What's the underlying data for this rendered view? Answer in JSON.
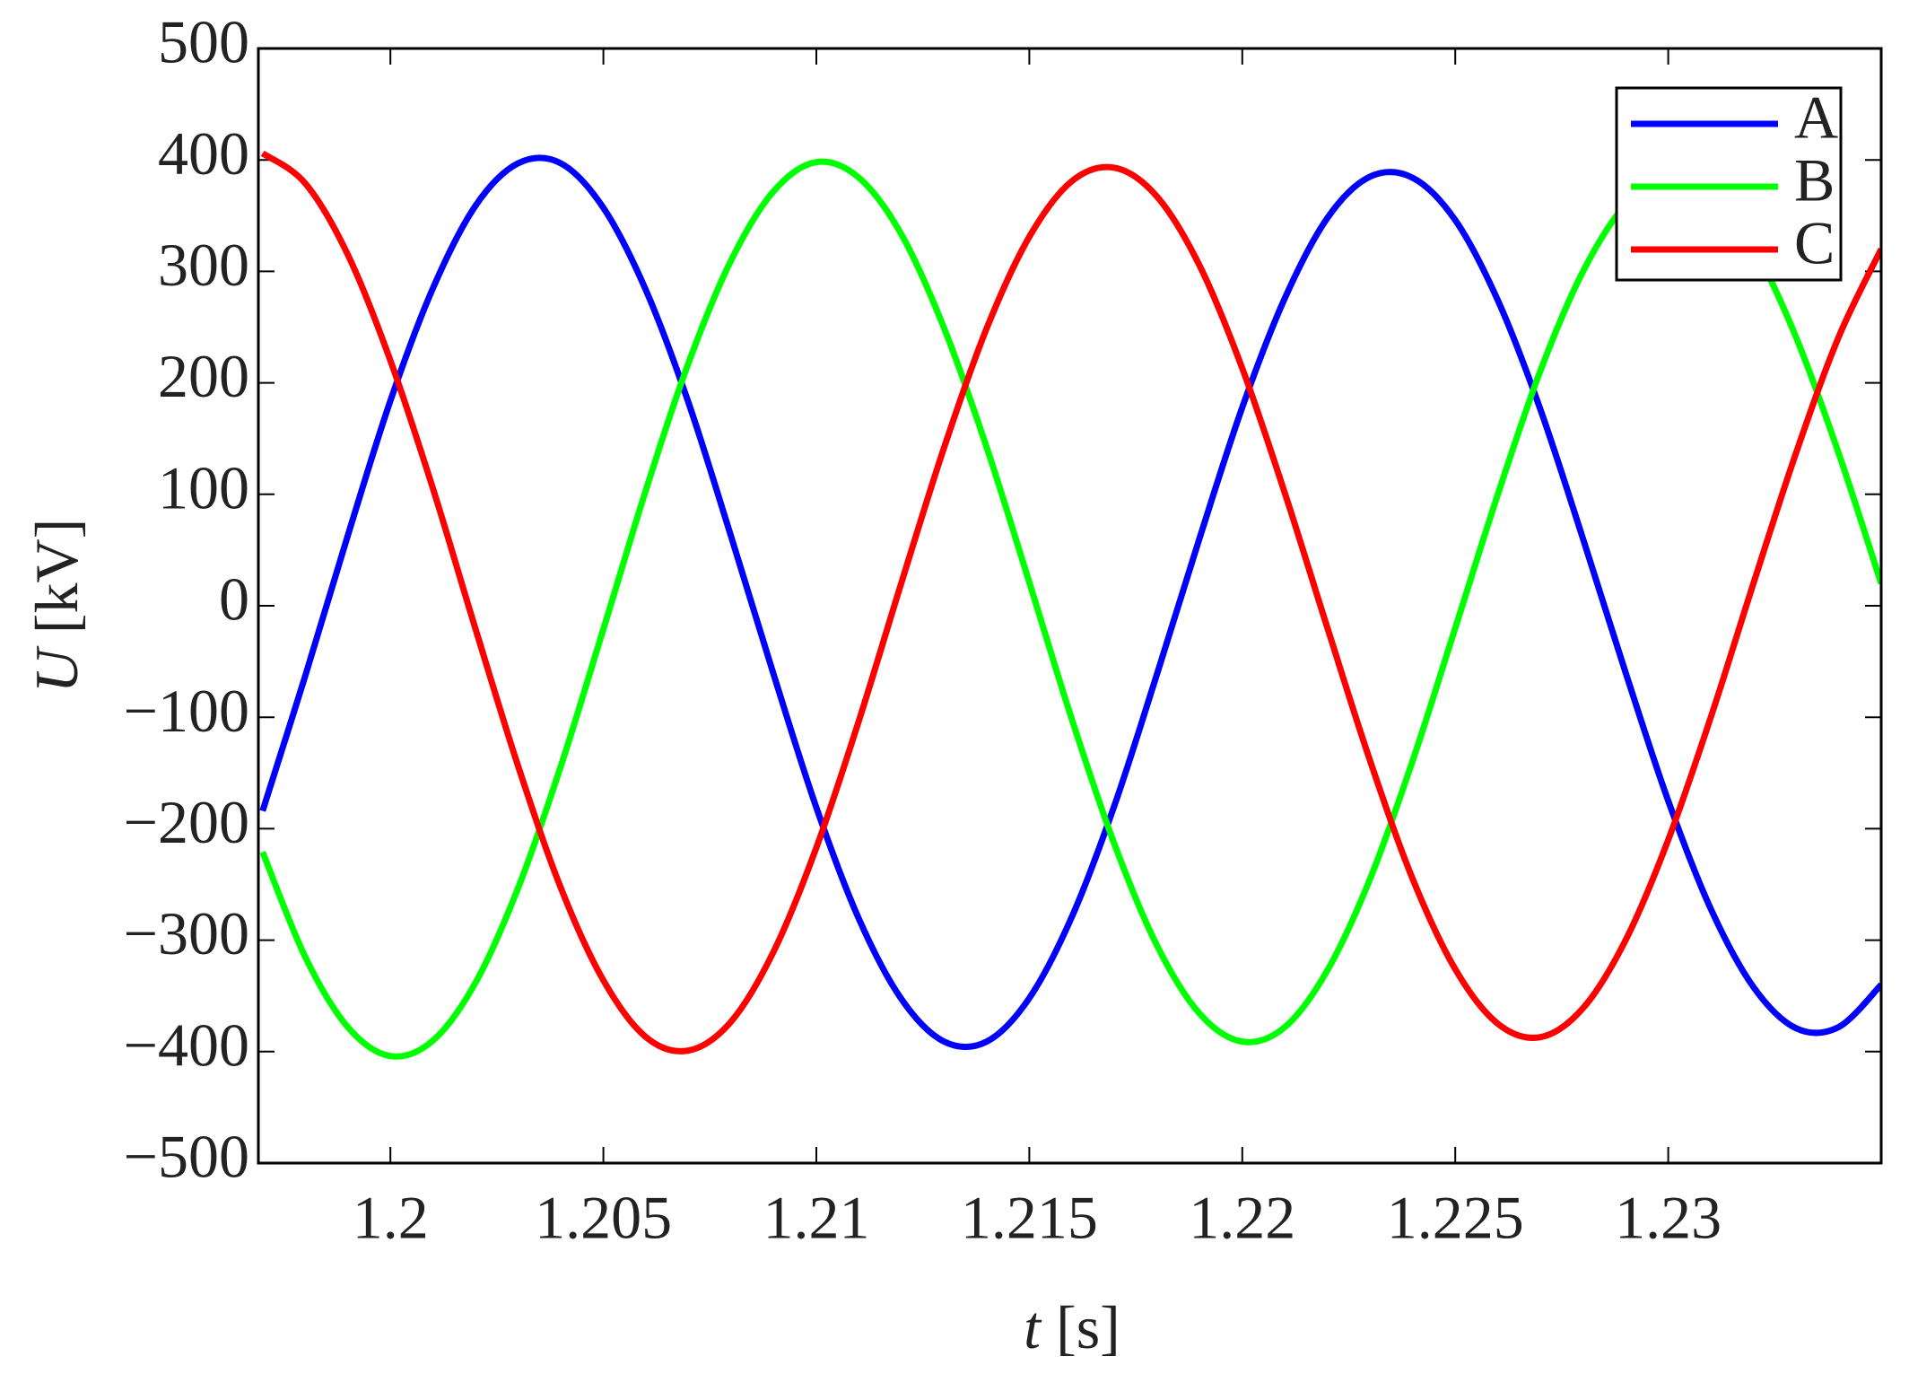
{
  "chart_data": {
    "type": "line",
    "x_label": {
      "symbol": "t",
      "unit": "[s]"
    },
    "y_label": {
      "symbol": "U",
      "unit": "[kV]"
    },
    "x": [
      1.197,
      1.198,
      1.199,
      1.2,
      1.201,
      1.202,
      1.203,
      1.204,
      1.205,
      1.206,
      1.207,
      1.208,
      1.209,
      1.21,
      1.211,
      1.212,
      1.213,
      1.214,
      1.215,
      1.216,
      1.217,
      1.218,
      1.219,
      1.22,
      1.221,
      1.222,
      1.223,
      1.224,
      1.225,
      1.226,
      1.227,
      1.228,
      1.229,
      1.23,
      1.231,
      1.232,
      1.233,
      1.234,
      1.235
    ],
    "series": [
      {
        "name": "A",
        "color": "#0000ff",
        "values": [
          -184,
          -63,
          63,
          184,
          285,
          359,
          397,
          397,
          357,
          283,
          182,
          62,
          -62,
          -181,
          -281,
          -353,
          -391,
          -391,
          -352,
          -279,
          -179,
          -61,
          61,
          178,
          276,
          348,
          385,
          384,
          346,
          274,
          176,
          60,
          -60,
          -175,
          -272,
          -342,
          -379,
          -378,
          -340
        ]
      },
      {
        "name": "B",
        "color": "#00ff00",
        "values": [
          -221,
          -315,
          -378,
          -404,
          -390,
          -338,
          -253,
          -144,
          -21,
          104,
          218,
          310,
          372,
          398,
          384,
          333,
          249,
          142,
          21,
          -102,
          -214,
          -305,
          -366,
          -391,
          -378,
          -327,
          -245,
          -139,
          -20,
          100,
          211,
          300,
          360,
          385,
          372,
          322,
          241,
          137,
          20
        ]
      },
      {
        "name": "C",
        "color": "#ff0000",
        "values": [
          406,
          379,
          315,
          220,
          105,
          -21,
          -144,
          -253,
          -336,
          -387,
          -399,
          -373,
          -310,
          -217,
          -103,
          21,
          142,
          249,
          331,
          381,
          393,
          367,
          305,
          213,
          101,
          -20,
          -139,
          -245,
          -326,
          -375,
          -387,
          -361,
          -300,
          -210,
          -100,
          20,
          137,
          241,
          320
        ]
      }
    ],
    "xlim": [
      1.1969,
      1.235
    ],
    "xticks": [
      1.2,
      1.205,
      1.21,
      1.215,
      1.22,
      1.225,
      1.23
    ],
    "ylim": [
      -500,
      500
    ],
    "yticks": [
      {
        "value": -500,
        "label": "−500"
      },
      {
        "value": -400,
        "label": "−400"
      },
      {
        "value": -300,
        "label": "−300"
      },
      {
        "value": -200,
        "label": "−200"
      },
      {
        "value": -100,
        "label": "−100"
      },
      0,
      100,
      200,
      300,
      400,
      500
    ],
    "legend": "upper right",
    "grid": false
  }
}
